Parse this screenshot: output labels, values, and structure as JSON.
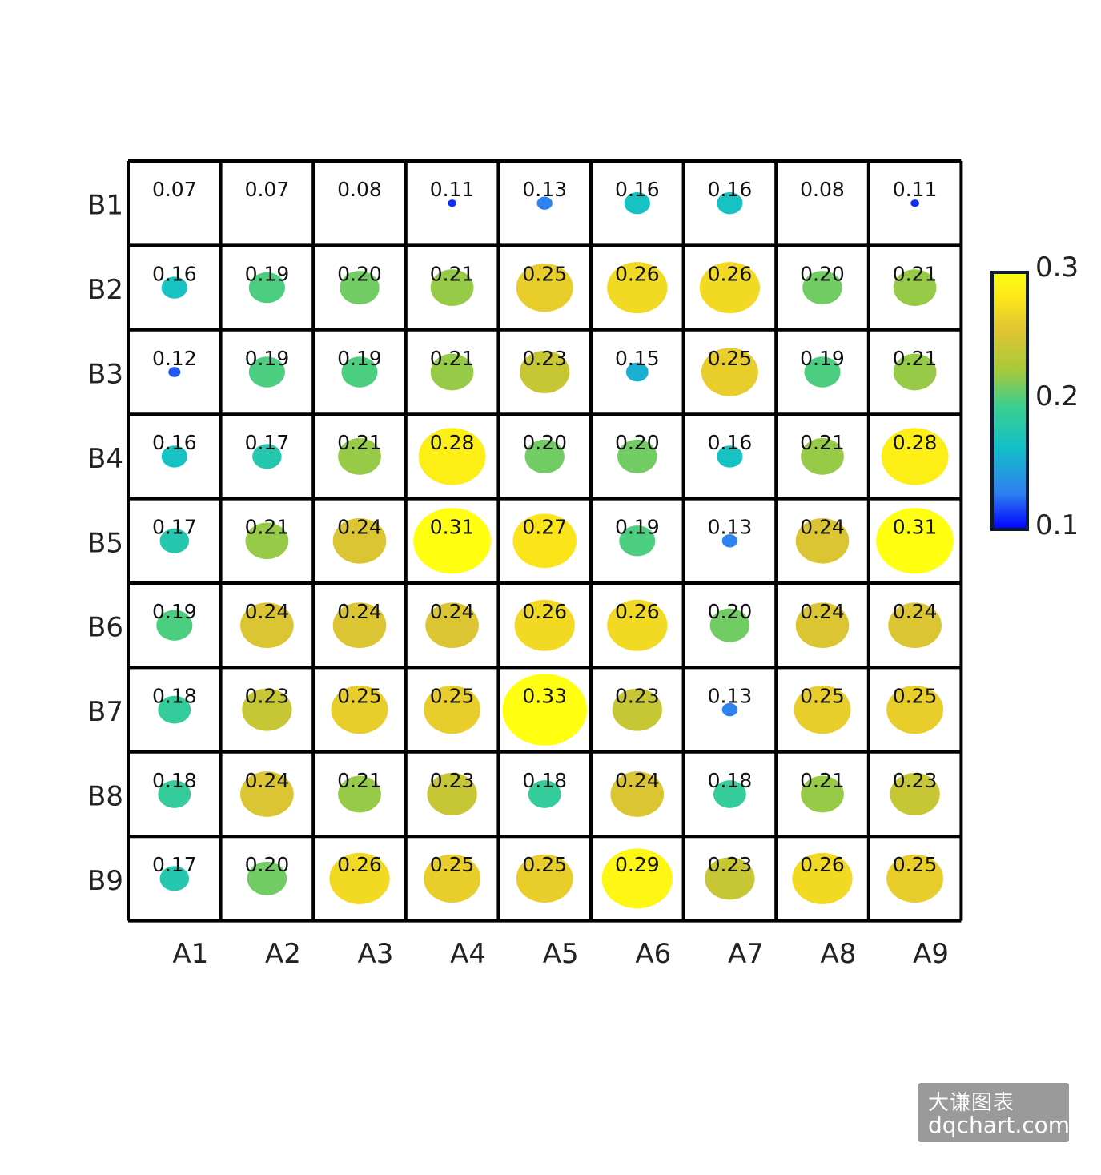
{
  "chart_data": {
    "type": "bubble-heatmap",
    "x_categories": [
      "A1",
      "A2",
      "A3",
      "A4",
      "A5",
      "A6",
      "A7",
      "A8",
      "A9"
    ],
    "y_categories": [
      "B1",
      "B2",
      "B3",
      "B4",
      "B5",
      "B6",
      "B7",
      "B8",
      "B9"
    ],
    "values": [
      [
        "0.07",
        "0.07",
        "0.08",
        "0.11",
        "0.13",
        "0.16",
        "0.16",
        "0.08",
        "0.11"
      ],
      [
        "0.16",
        "0.19",
        "0.20",
        "0.21",
        "0.25",
        "0.26",
        "0.26",
        "0.20",
        "0.21"
      ],
      [
        "0.12",
        "0.19",
        "0.19",
        "0.21",
        "0.23",
        "0.15",
        "0.25",
        "0.19",
        "0.21"
      ],
      [
        "0.16",
        "0.17",
        "0.21",
        "0.28",
        "0.20",
        "0.20",
        "0.16",
        "0.21",
        "0.28"
      ],
      [
        "0.17",
        "0.21",
        "0.24",
        "0.31",
        "0.27",
        "0.19",
        "0.13",
        "0.24",
        "0.31"
      ],
      [
        "0.19",
        "0.24",
        "0.24",
        "0.24",
        "0.26",
        "0.26",
        "0.20",
        "0.24",
        "0.24"
      ],
      [
        "0.18",
        "0.23",
        "0.25",
        "0.25",
        "0.33",
        "0.23",
        "0.13",
        "0.25",
        "0.25"
      ],
      [
        "0.18",
        "0.24",
        "0.21",
        "0.23",
        "0.18",
        "0.24",
        "0.18",
        "0.21",
        "0.23"
      ],
      [
        "0.17",
        "0.20",
        "0.26",
        "0.25",
        "0.25",
        "0.29",
        "0.23",
        "0.26",
        "0.25"
      ]
    ],
    "colorbar": {
      "range": [
        0.1,
        0.3
      ],
      "ticks": [
        "0.3",
        "0.2",
        "0.1"
      ],
      "colormap": [
        "#0000ff",
        "#2f80f0",
        "#12c0c8",
        "#3ccf8e",
        "#a7c93a",
        "#e2c531",
        "#fce619",
        "#ffff10"
      ]
    },
    "grid": true,
    "legend_position": "right"
  },
  "watermark": {
    "line1": "大谦图表",
    "line2": "dqchart.com"
  }
}
